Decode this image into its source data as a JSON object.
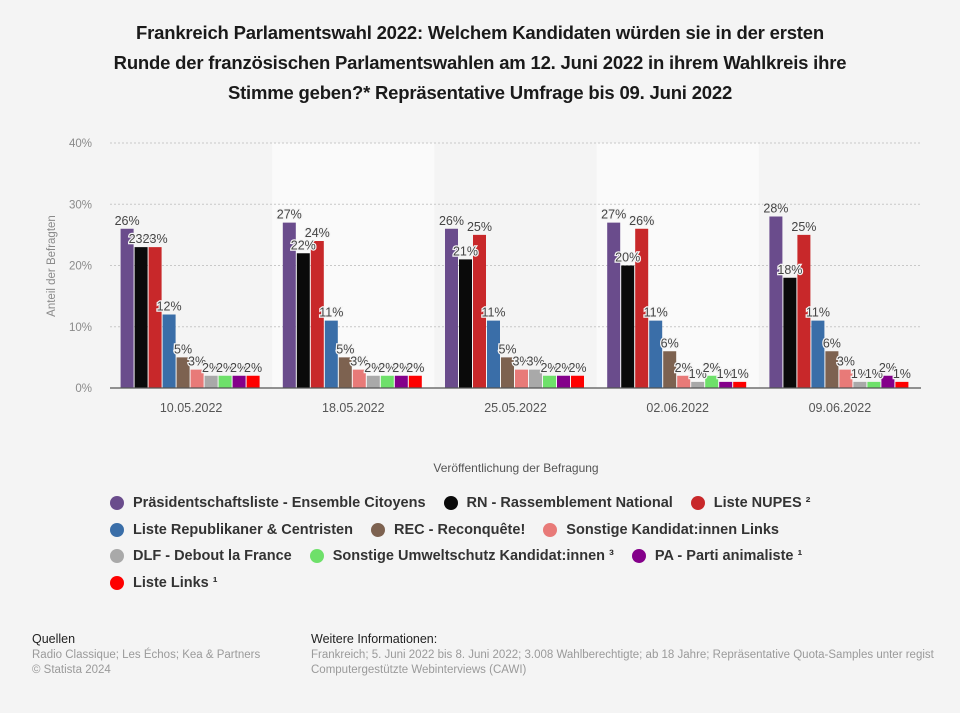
{
  "title": "Frankreich Parlamentswahl 2022: Welchem Kandidaten würden sie in der ersten Runde der französischen Parlamentswahlen am 12. Juni 2022 in ihrem Wahlkreis ihre Stimme geben?* Repräsentative Umfrage bis 09. Juni 2022",
  "title_lines": [
    "Frankreich Parlamentswahl 2022: Welchem Kandidaten würden sie in der ersten",
    "Runde der französischen Parlamentswahlen am 12. Juni 2022 in ihrem Wahlkreis ihre",
    "Stimme geben?* Repräsentative Umfrage bis 09. Juni 2022"
  ],
  "chart_data": {
    "type": "bar",
    "title": "Frankreich Parlamentswahl 2022: Welchem Kandidaten würden sie in der ersten Runde der französischen Parlamentswahlen am 12. Juni 2022 in ihrem Wahlkreis ihre Stimme geben?* Repräsentative Umfrage bis 09. Juni 2022",
    "xlabel": "Veröffentlichung der Befragung",
    "ylabel": "Anteil der Befragten",
    "ylim": [
      0,
      40
    ],
    "yticks": [
      0,
      10,
      20,
      30,
      40
    ],
    "ytick_labels": [
      "0%",
      "10%",
      "20%",
      "30%",
      "40%"
    ],
    "value_suffix": "%",
    "grid": true,
    "legend_position": "bottom",
    "categories": [
      "10.05.2022",
      "18.05.2022",
      "25.05.2022",
      "02.06.2022",
      "09.06.2022"
    ],
    "series": [
      {
        "name": "Präsidentschaftsliste - Ensemble Citoyens",
        "color": "#6a4c8c",
        "values": [
          26,
          27,
          26,
          27,
          28
        ]
      },
      {
        "name": "RN - Rassemblement National",
        "color": "#0a0a0a",
        "values": [
          23,
          22,
          21,
          20,
          18
        ]
      },
      {
        "name": "Liste NUPES ²",
        "color": "#c8282a",
        "values": [
          23,
          24,
          25,
          26,
          25
        ]
      },
      {
        "name": "Liste Republikaner & Centristen",
        "color": "#3a6ea8",
        "values": [
          12,
          11,
          11,
          11,
          11
        ]
      },
      {
        "name": "REC - Reconquête!",
        "color": "#7d6250",
        "values": [
          5,
          5,
          5,
          6,
          6
        ]
      },
      {
        "name": "Sonstige Kandidat:innen Links",
        "color": "#e87a78",
        "values": [
          3,
          3,
          3,
          2,
          3
        ]
      },
      {
        "name": "DLF - Debout la France",
        "color": "#a9a9a9",
        "values": [
          2,
          2,
          3,
          1,
          1
        ]
      },
      {
        "name": "Sonstige Umweltschutz Kandidat:innen ³",
        "color": "#6ee06a",
        "values": [
          2,
          2,
          2,
          2,
          1
        ]
      },
      {
        "name": "PA - Parti animaliste ¹",
        "color": "#84008a",
        "values": [
          2,
          2,
          2,
          1,
          2
        ]
      },
      {
        "name": "Liste Links ¹",
        "color": "#fe0000",
        "values": [
          2,
          2,
          2,
          1,
          1
        ]
      }
    ]
  },
  "legend_rows": [
    [
      0,
      1,
      2
    ],
    [
      3,
      4,
      5
    ],
    [
      6,
      7,
      8
    ],
    [
      9
    ]
  ],
  "footer": {
    "sources_heading": "Quellen",
    "sources_text": "Radio Classique; Les Échos; Kea & Partners",
    "copyright": "© Statista 2024",
    "info_heading": "Weitere Informationen:",
    "info_line1": "Frankreich; 5. Juni 2022 bis 8. Juni 2022; 3.008 Wahlberechtigte; ab 18 Jahre; Repräsentative Quota-Samples unter regist",
    "info_line2": "Computergestützte Webinterviews (CAWI)"
  }
}
